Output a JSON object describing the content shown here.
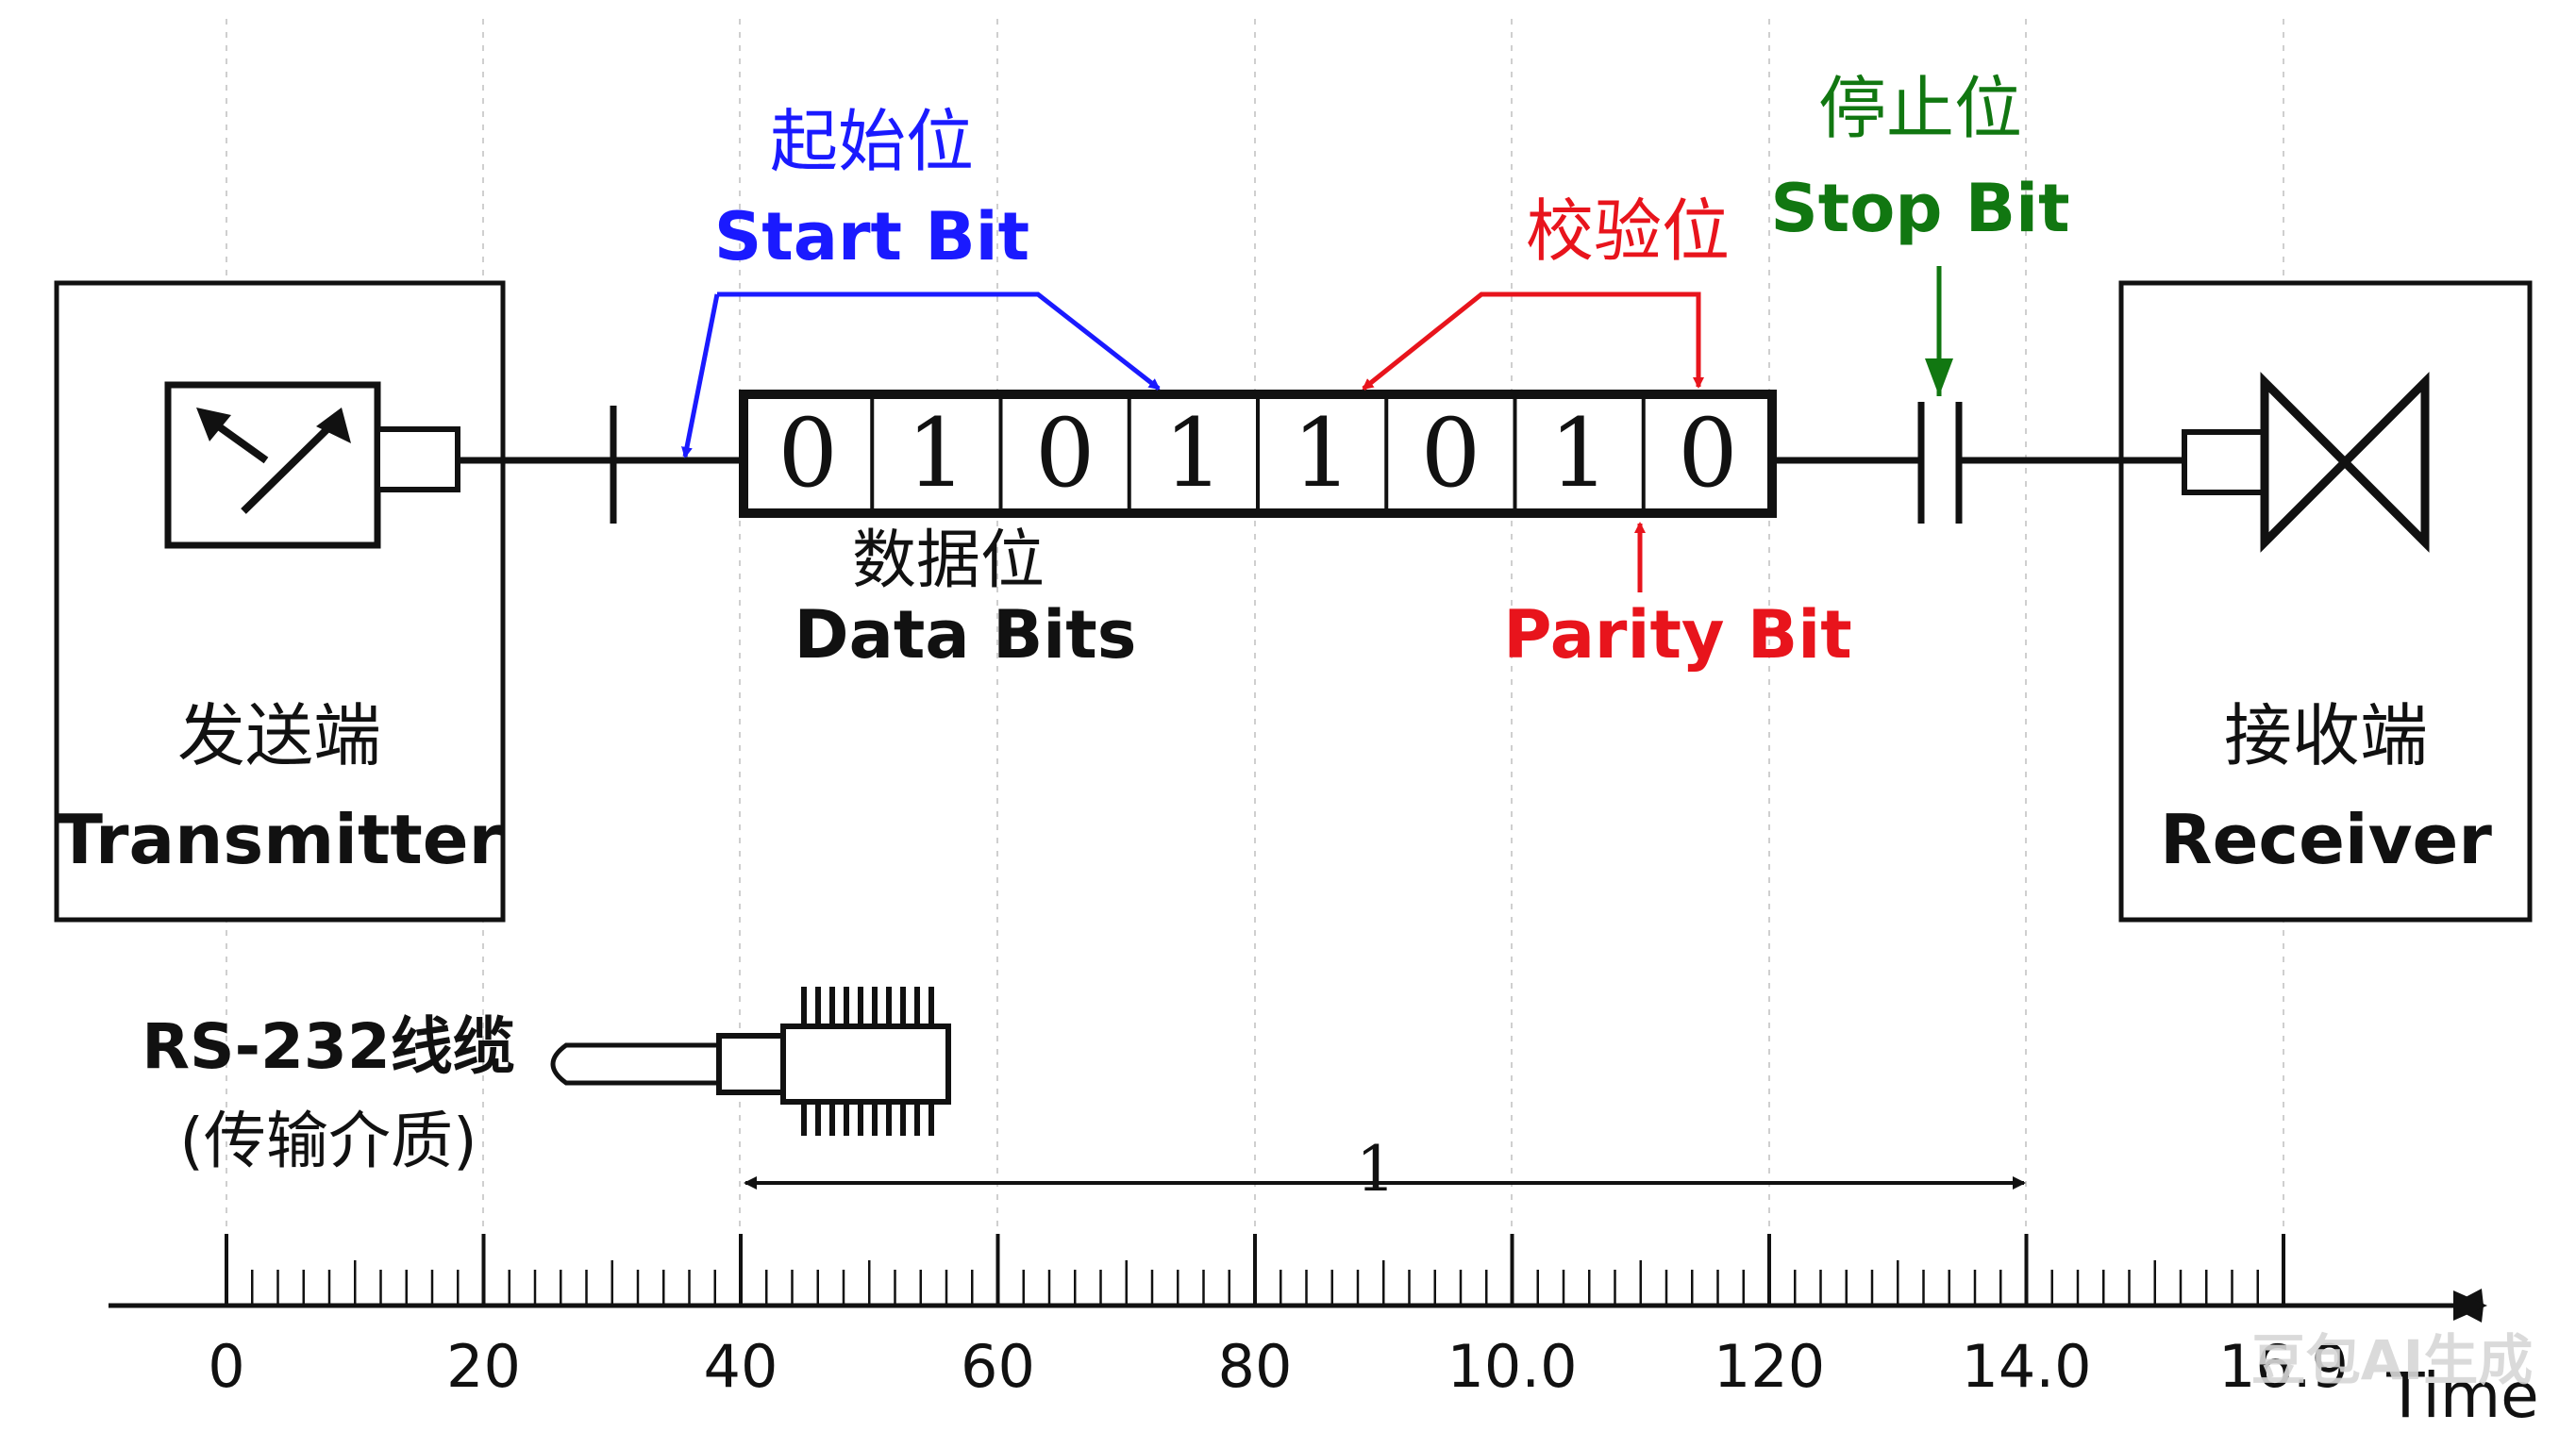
{
  "transmitter": {
    "label_cn": "发送端",
    "label_en": "Transmitter",
    "icon": "antenna-arrow-icon"
  },
  "receiver": {
    "label_cn": "接收端",
    "label_en": "Receiver",
    "icon": "bowtie-receiver-icon"
  },
  "start_bit": {
    "label_cn": "起始位",
    "label_en": "Start Bit",
    "color": "#1a1aff"
  },
  "parity_bit": {
    "label_cn": "校验位",
    "label_en": "Parity Bit",
    "color": "#e8141c"
  },
  "stop_bit": {
    "label_cn": "停止位",
    "label_en": "Stop Bit",
    "color": "#117711"
  },
  "data_bits": {
    "label_cn": "数据位",
    "label_en": "Data Bits",
    "values": [
      "0",
      "1",
      "0",
      "1",
      "1",
      "0",
      "1",
      "0"
    ]
  },
  "cable": {
    "label": "RS-232线缆",
    "sub": "(传输介质)",
    "icon": "rs232-connector-icon"
  },
  "duration": {
    "label": "1"
  },
  "axis": {
    "ticks": [
      "0",
      "20",
      "40",
      "60",
      "80",
      "10.0",
      "120",
      "14.0",
      "16.9"
    ],
    "label": "Time"
  },
  "watermark": {
    "text": "豆包AI生成"
  }
}
